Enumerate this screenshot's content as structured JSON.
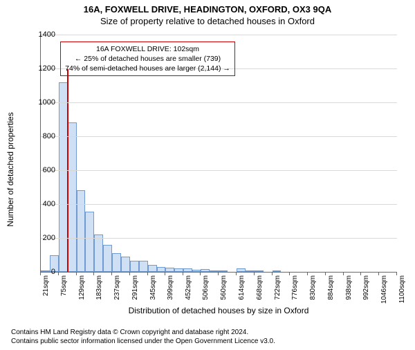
{
  "title_line1": "16A, FOXWELL DRIVE, HEADINGTON, OXFORD, OX3 9QA",
  "title_line2": "Size of property relative to detached houses in Oxford",
  "ylabel": "Number of detached properties",
  "xlabel": "Distribution of detached houses by size in Oxford",
  "chart": {
    "type": "histogram",
    "background_color": "#ffffff",
    "grid_color": "#d9d9d9",
    "axis_color": "#666666",
    "bar_fill": "#cfe0f5",
    "bar_stroke": "#6f9bd1",
    "marker_color": "#cc0000",
    "annotation_border": "#cc0000",
    "ylim": [
      0,
      1400
    ],
    "yticks": [
      0,
      200,
      400,
      600,
      800,
      1000,
      1200,
      1400
    ],
    "xlim_sqm": [
      21,
      1100
    ],
    "bin_width_sqm": 27,
    "xtick_labels": [
      "21sqm",
      "75sqm",
      "129sqm",
      "183sqm",
      "237sqm",
      "291sqm",
      "345sqm",
      "399sqm",
      "452sqm",
      "506sqm",
      "560sqm",
      "614sqm",
      "668sqm",
      "722sqm",
      "776sqm",
      "830sqm",
      "884sqm",
      "938sqm",
      "992sqm",
      "1046sqm",
      "1100sqm"
    ],
    "xtick_positions_sqm": [
      21,
      75,
      129,
      183,
      237,
      291,
      345,
      399,
      452,
      506,
      560,
      614,
      668,
      722,
      776,
      830,
      884,
      938,
      992,
      1046,
      1100
    ],
    "bars": [
      {
        "start_sqm": 21,
        "count": 10
      },
      {
        "start_sqm": 48,
        "count": 100
      },
      {
        "start_sqm": 75,
        "count": 1120
      },
      {
        "start_sqm": 102,
        "count": 880
      },
      {
        "start_sqm": 129,
        "count": 480
      },
      {
        "start_sqm": 156,
        "count": 355
      },
      {
        "start_sqm": 183,
        "count": 220
      },
      {
        "start_sqm": 210,
        "count": 160
      },
      {
        "start_sqm": 237,
        "count": 110
      },
      {
        "start_sqm": 264,
        "count": 90
      },
      {
        "start_sqm": 291,
        "count": 65
      },
      {
        "start_sqm": 318,
        "count": 65
      },
      {
        "start_sqm": 345,
        "count": 40
      },
      {
        "start_sqm": 372,
        "count": 30
      },
      {
        "start_sqm": 399,
        "count": 25
      },
      {
        "start_sqm": 426,
        "count": 20
      },
      {
        "start_sqm": 452,
        "count": 20
      },
      {
        "start_sqm": 479,
        "count": 12
      },
      {
        "start_sqm": 506,
        "count": 18
      },
      {
        "start_sqm": 533,
        "count": 8
      },
      {
        "start_sqm": 560,
        "count": 6
      },
      {
        "start_sqm": 587,
        "count": 0
      },
      {
        "start_sqm": 614,
        "count": 20
      },
      {
        "start_sqm": 641,
        "count": 4
      },
      {
        "start_sqm": 668,
        "count": 4
      },
      {
        "start_sqm": 695,
        "count": 0
      },
      {
        "start_sqm": 722,
        "count": 2
      }
    ],
    "marker_sqm": 102,
    "marker_height_count": 1200,
    "annotation": {
      "line1": "16A FOXWELL DRIVE: 102sqm",
      "line2": "← 25% of detached houses are smaller (739)",
      "line3": "74% of semi-detached houses are larger (2,144) →",
      "left_sqm": 80,
      "top_count": 1360
    },
    "label_fontsize": 12,
    "tick_fontsize": 11,
    "title_fontsize": 13
  },
  "footer_line1": "Contains HM Land Registry data © Crown copyright and database right 2024.",
  "footer_line2": "Contains public sector information licensed under the Open Government Licence v3.0."
}
